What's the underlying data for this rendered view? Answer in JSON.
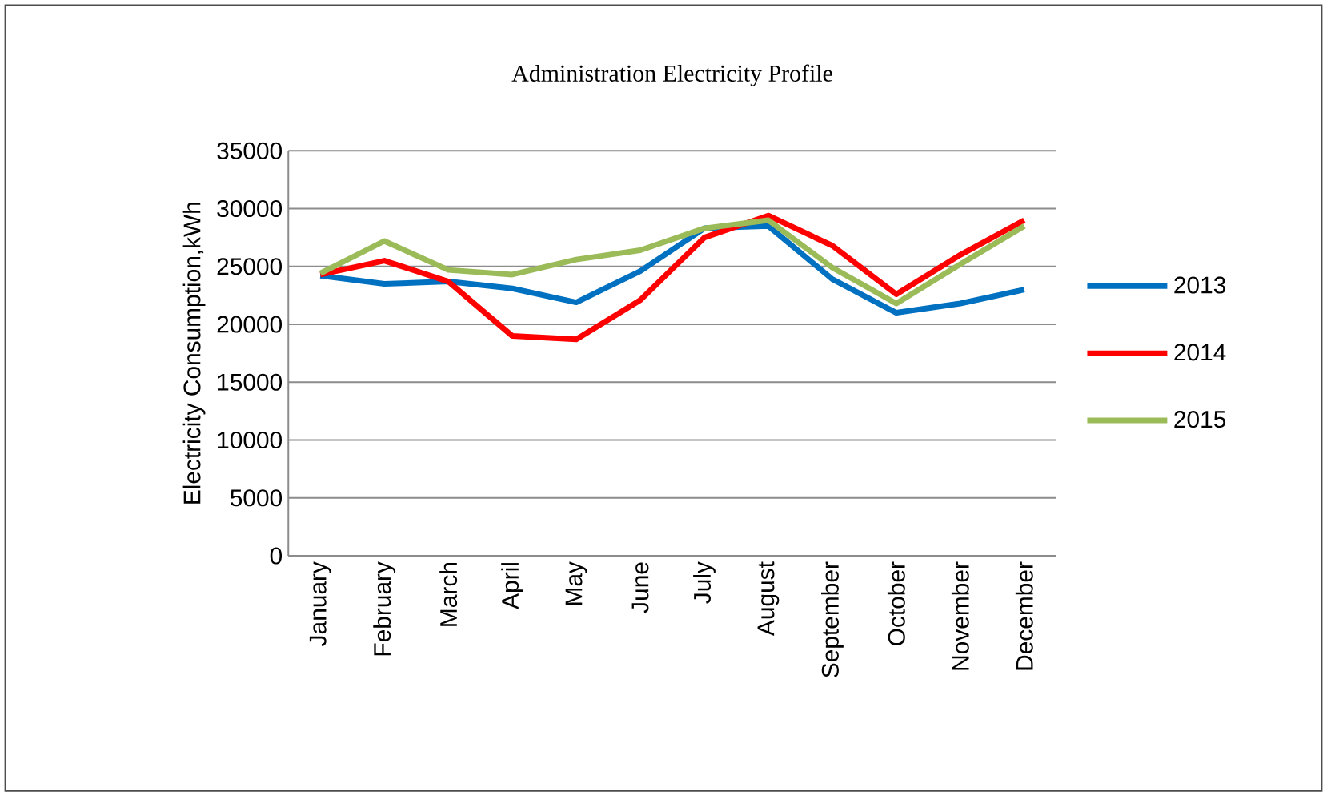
{
  "chart_data": {
    "type": "line",
    "title": "Administration  Electricity Profile",
    "ylabel": "Electricity Consumption,kWh",
    "categories": [
      "January",
      "February",
      "March",
      "April",
      "May",
      "June",
      "July",
      "August",
      "September",
      "October",
      "November",
      "December"
    ],
    "series": [
      {
        "name": "2013",
        "color": "#0070c0",
        "values": [
          24200,
          23500,
          23700,
          23100,
          21900,
          24600,
          28300,
          28500,
          23900,
          21000,
          21800,
          23000
        ]
      },
      {
        "name": "2014",
        "color": "#ff0000",
        "values": [
          24300,
          25500,
          23700,
          19000,
          18700,
          22100,
          27500,
          29400,
          26800,
          22600,
          26000,
          29000
        ]
      },
      {
        "name": "2015",
        "color": "#9bbb59",
        "values": [
          24400,
          27200,
          24700,
          24300,
          25600,
          26400,
          28300,
          29000,
          24900,
          21800,
          25200,
          28500
        ]
      }
    ],
    "ylim": [
      0,
      35000
    ],
    "yticks": [
      0,
      5000,
      10000,
      15000,
      20000,
      25000,
      30000,
      35000
    ],
    "grid": "y",
    "legend": "right",
    "marker": "none",
    "line_style": "solid"
  }
}
